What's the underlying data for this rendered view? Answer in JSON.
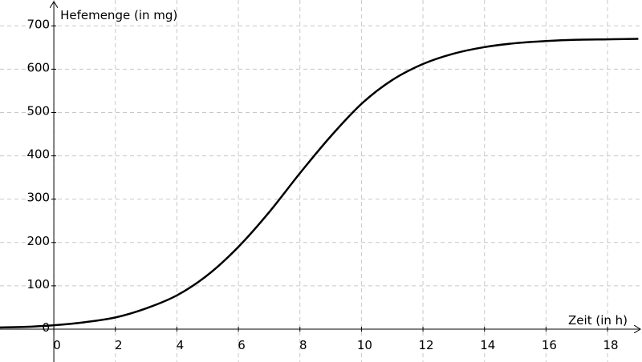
{
  "chart_data": {
    "type": "line",
    "x_label": "Zeit (in h)",
    "y_label": "Hefemenge (in mg)",
    "x": [
      -1.75,
      -1,
      0,
      1,
      2,
      3,
      4,
      5,
      6,
      7,
      8,
      9,
      10,
      11,
      12,
      13,
      14,
      15,
      16,
      17,
      18,
      19
    ],
    "series": [
      {
        "color": "#000000",
        "values": [
          4,
          5,
          9,
          16,
          27,
          48,
          78,
          125,
          190,
          270,
          360,
          445,
          520,
          575,
          612,
          636,
          651,
          660,
          665,
          668,
          669,
          670
        ]
      }
    ],
    "xlim": [
      -1.75,
      19.12
    ],
    "ylim": [
      -75.8,
      759.7
    ],
    "xticks": [
      0,
      2,
      4,
      6,
      8,
      10,
      12,
      14,
      16,
      18
    ],
    "yticks": [
      0,
      100,
      200,
      300,
      400,
      500,
      600,
      700
    ],
    "grid": true
  }
}
